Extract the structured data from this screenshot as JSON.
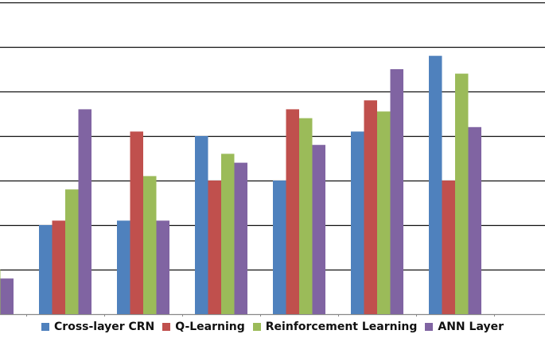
{
  "chart_data": {
    "type": "bar",
    "title": "",
    "xlabel": "",
    "ylabel": "",
    "categories": [
      "",
      "",
      "",
      "",
      "",
      "",
      ""
    ],
    "ylim": [
      0,
      7
    ],
    "grid": true,
    "legend_position": "bottom",
    "series": [
      {
        "name": "Cross-layer CRN",
        "color": "#4F81BD",
        "values": [
          0,
          2.0,
          2.1,
          4.0,
          3.0,
          4.1,
          5.8
        ]
      },
      {
        "name": "Q-Learning",
        "color": "#C0504D",
        "values": [
          2.0,
          2.1,
          4.1,
          3.0,
          4.6,
          4.8,
          3.0
        ]
      },
      {
        "name": "Reinforcement Learning",
        "color": "#9BBB59",
        "values": [
          1.0,
          2.8,
          3.1,
          3.6,
          4.4,
          4.55,
          5.4
        ]
      },
      {
        "name": "ANN Layer",
        "color": "#8064A2",
        "values": [
          0.8,
          4.6,
          2.1,
          3.4,
          3.8,
          5.5,
          4.2
        ]
      }
    ]
  }
}
